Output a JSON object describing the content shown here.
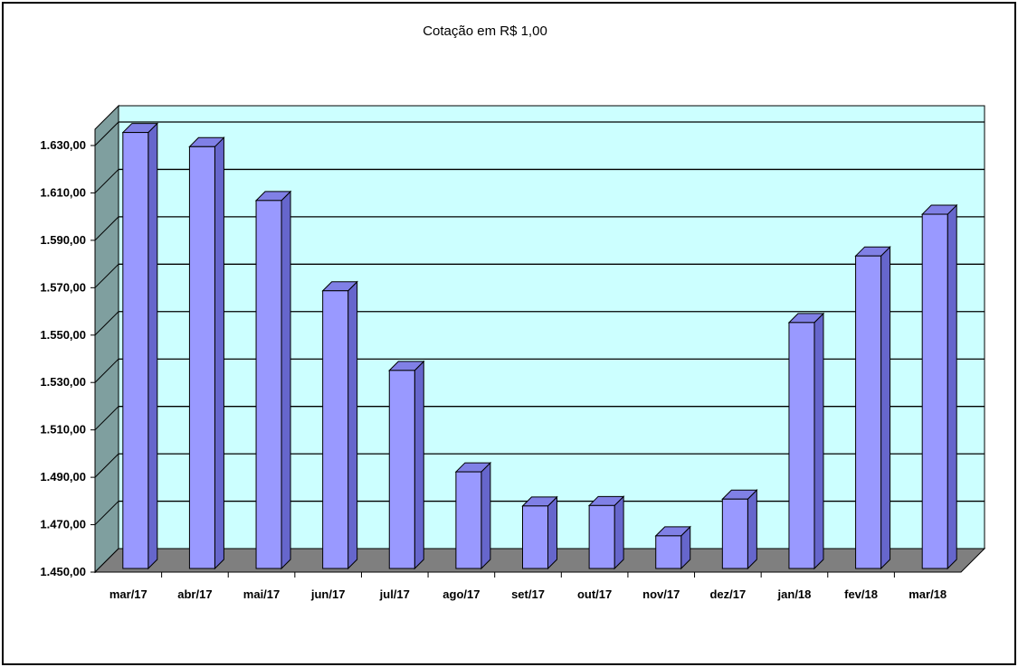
{
  "chart_data": {
    "type": "bar",
    "title": "Cotação em R$ 1,00",
    "xlabel": "",
    "ylabel": "",
    "categories": [
      "mar/17",
      "abr/17",
      "mai/17",
      "jun/17",
      "jul/17",
      "ago/17",
      "set/17",
      "out/17",
      "nov/17",
      "dez/17",
      "jan/18",
      "fev/18",
      "mar/18"
    ],
    "series": [
      {
        "values": [
          1635.5,
          1629.5,
          1606.8,
          1568.7,
          1535.1,
          1492.3,
          1477.9,
          1478.1,
          1465.3,
          1480.8,
          1555.3,
          1583.4,
          1601.0
        ]
      }
    ],
    "ylim": [
      1450,
      1630
    ],
    "yticks": [
      "1.450,00",
      "1.470,00",
      "1.490,00",
      "1.510,00",
      "1.530,00",
      "1.550,00",
      "1.570,00",
      "1.590,00",
      "1.610,00",
      "1.630,00"
    ],
    "grid": true,
    "legend": "none",
    "colors": {
      "bar_front": "#9999FF",
      "bar_side": "#6666CC",
      "bar_top": "#8080E6",
      "plot_back": "#CCFFFF",
      "side_wall": "#7F9F9F",
      "floor": "#7F7F7F",
      "gridline": "#000000"
    }
  }
}
